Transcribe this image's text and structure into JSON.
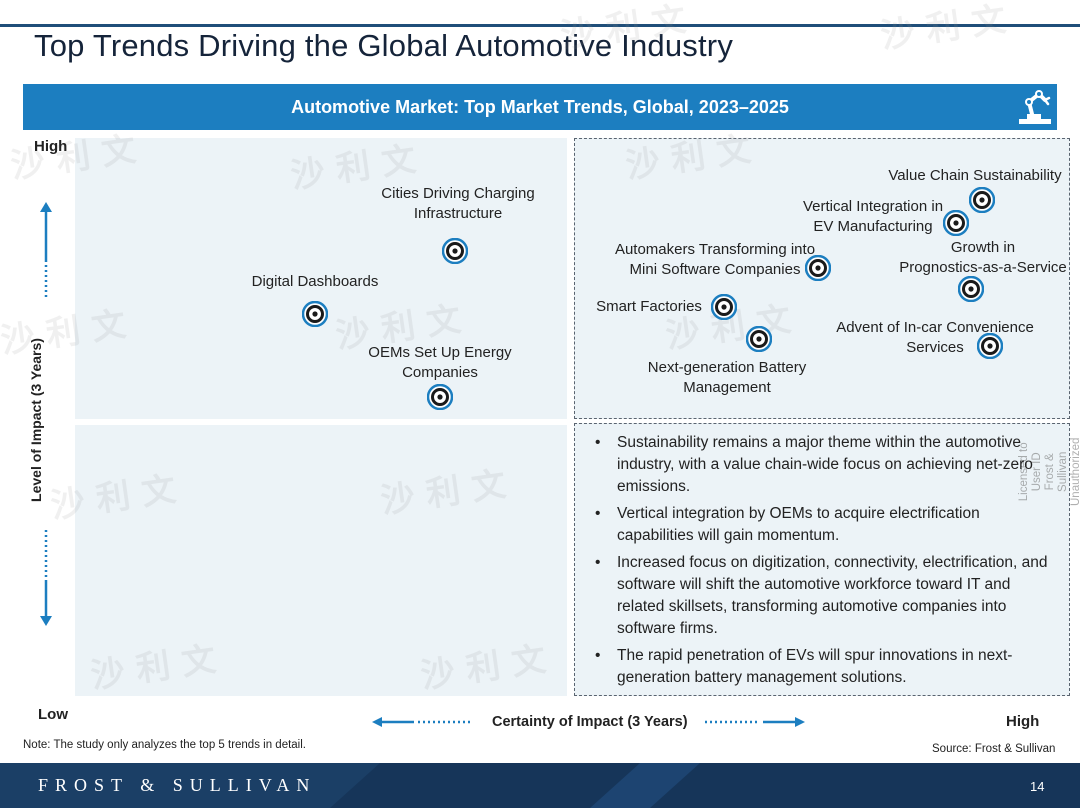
{
  "page": {
    "title": "Top Trends Driving the Global Automotive Industry",
    "banner_title": "Automotive Market: Top Market Trends, Global, 2023–2025",
    "note": "Note: The study only analyzes the top 5 trends in detail.",
    "source": "Source: Frost & Sullivan",
    "page_number": "14",
    "brand": "FROST & SULLIVAN"
  },
  "axes": {
    "y_label": "Level of Impact (3 Years)",
    "y_high": "High",
    "y_low": "Low",
    "x_label": "Certainty of Impact (3 Years)",
    "x_high": "High"
  },
  "trends": [
    {
      "name": "Cities Driving Charging\nInfrastructure"
    },
    {
      "name": "Digital Dashboards"
    },
    {
      "name": "OEMs Set Up Energy\nCompanies"
    },
    {
      "name": "Value Chain Sustainability"
    },
    {
      "name": "Vertical Integration in\nEV Manufacturing"
    },
    {
      "name": "Growth in\nPrognostics-as-a-Service"
    },
    {
      "name": "Automakers Transforming into\nMini Software Companies"
    },
    {
      "name": "Smart Factories"
    },
    {
      "name": "Advent of In-car Convenience\nServices"
    },
    {
      "name": "Next-generation Battery\nManagement"
    }
  ],
  "bullets": [
    "Sustainability remains a major theme within the automotive industry, with a value chain-wide focus on achieving net-zero emissions.",
    "Vertical integration by OEMs to acquire electrification capabilities will gain momentum.",
    "Increased focus on digitization, connectivity, electrification, and software will shift the automotive workforce toward IT and related skillsets, transforming automotive companies into software firms.",
    "The rapid penetration of EVs will spur innovations in next-generation battery management solutions."
  ],
  "watermarks": {
    "logo_text": "沙 利 文",
    "stamp": "Licensed to User ID\nFrost & Sullivan\nUnauthorized Distribution Prohibited"
  },
  "colors": {
    "banner": "#1c7ec0",
    "quadrant_fill": "#ecf3f7",
    "marker_ring": "#1c7ec0",
    "footer": "#1b3f66",
    "arrow": "#1c7ec0"
  }
}
